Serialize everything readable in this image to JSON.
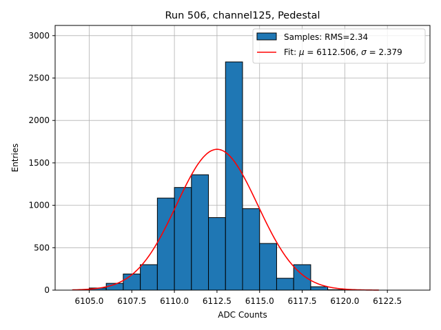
{
  "chart_data": {
    "type": "bar",
    "title": "Run 506, channel125, Pedestal",
    "xlabel": "ADC Counts",
    "ylabel": "Entries",
    "xlim": [
      6103.0,
      6125.0
    ],
    "ylim": [
      0,
      3120
    ],
    "xticks": [
      6105.0,
      6107.5,
      6110.0,
      6112.5,
      6115.0,
      6117.5,
      6120.0,
      6122.5
    ],
    "xtick_labels": [
      "6105.0",
      "6107.5",
      "6110.0",
      "6112.5",
      "6115.0",
      "6117.5",
      "6120.0",
      "6122.5"
    ],
    "yticks": [
      0,
      500,
      1000,
      1500,
      2000,
      2500,
      3000
    ],
    "ytick_labels": [
      "0",
      "500",
      "1000",
      "1500",
      "2000",
      "2500",
      "3000"
    ],
    "grid": true,
    "bin_edges": [
      6105,
      6106,
      6107,
      6108,
      6109,
      6110,
      6111,
      6112,
      6113,
      6114,
      6115,
      6116,
      6117,
      6118,
      6119,
      6120,
      6121
    ],
    "values": [
      25,
      80,
      190,
      300,
      1085,
      1210,
      1360,
      855,
      2690,
      960,
      550,
      140,
      300,
      40,
      5,
      2
    ],
    "bar_color": "#1f77b4",
    "fit_color": "#ff0000",
    "fit": {
      "mu": 6112.506,
      "sigma": 2.379,
      "amplitude": 1660,
      "x_range": [
        6104.0,
        6122.0
      ]
    },
    "legend": {
      "position": "top-right",
      "samples_label": "Samples: RMS=2.34",
      "fit_prefix": "Fit: ",
      "mu_symbol": "μ",
      "mu_text": " = 6112.506, ",
      "sigma_symbol": "σ",
      "sigma_text": " = 2.379"
    }
  }
}
